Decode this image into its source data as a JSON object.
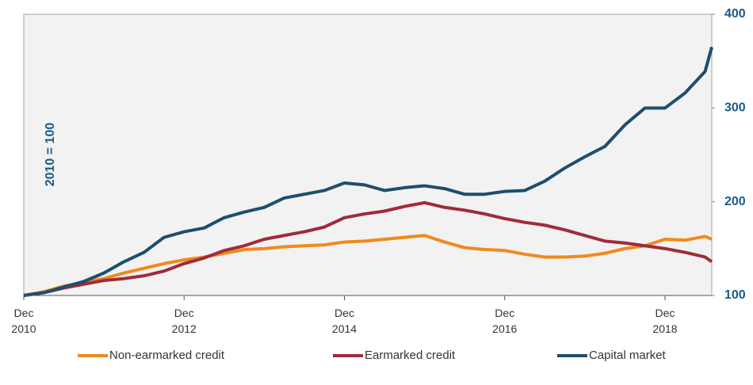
{
  "chart_data": {
    "type": "line",
    "annotation": "2010 = 100",
    "x": [
      "2010-12",
      "2011-03",
      "2011-06",
      "2011-09",
      "2011-12",
      "2012-03",
      "2012-06",
      "2012-09",
      "2012-12",
      "2013-03",
      "2013-06",
      "2013-09",
      "2013-12",
      "2014-03",
      "2014-06",
      "2014-09",
      "2014-12",
      "2015-03",
      "2015-06",
      "2015-09",
      "2015-12",
      "2016-03",
      "2016-06",
      "2016-09",
      "2016-12",
      "2017-03",
      "2017-06",
      "2017-09",
      "2017-12",
      "2018-03",
      "2018-06",
      "2018-09",
      "2018-12",
      "2019-03",
      "2019-06",
      "2019-07"
    ],
    "series": [
      {
        "name": "Non-earmarked credit",
        "color": "#f08a1c",
        "values": [
          100,
          104,
          110,
          114,
          118,
          124,
          129,
          134,
          138,
          141,
          145,
          149,
          150,
          152,
          153,
          154,
          157,
          158,
          160,
          162,
          164,
          157,
          151,
          149,
          148,
          144,
          141,
          141,
          142,
          145,
          150,
          153,
          160,
          159,
          163,
          160
        ]
      },
      {
        "name": "Earmarked credit",
        "color": "#a02b3a",
        "values": [
          100,
          103,
          108,
          112,
          116,
          118,
          121,
          126,
          134,
          140,
          148,
          153,
          160,
          164,
          168,
          173,
          183,
          187,
          190,
          195,
          199,
          194,
          191,
          187,
          182,
          178,
          175,
          170,
          164,
          158,
          156,
          153,
          150,
          146,
          141,
          136
        ]
      },
      {
        "name": "Capital market",
        "color": "#1d4e6e",
        "values": [
          100,
          103,
          109,
          115,
          124,
          136,
          146,
          162,
          168,
          172,
          183,
          189,
          194,
          204,
          208,
          212,
          220,
          218,
          212,
          215,
          217,
          214,
          208,
          208,
          211,
          212,
          222,
          236,
          248,
          259,
          282,
          300,
          300,
          316,
          339,
          365
        ]
      }
    ],
    "xlim": [
      "2010-12",
      "2019-07"
    ],
    "xticks": [
      {
        "value": "2010-12",
        "label": "Dec 2010"
      },
      {
        "value": "2012-12",
        "label": "Dec 2012"
      },
      {
        "value": "2014-12",
        "label": "Dec 2014"
      },
      {
        "value": "2016-12",
        "label": "Dec 2016"
      },
      {
        "value": "2018-12",
        "label": "Dec 2018"
      }
    ],
    "ylim": [
      100,
      400
    ],
    "yticks": [
      100,
      200,
      300,
      400
    ],
    "yaxis_side": "right",
    "grid": false,
    "legend": "bottom"
  }
}
